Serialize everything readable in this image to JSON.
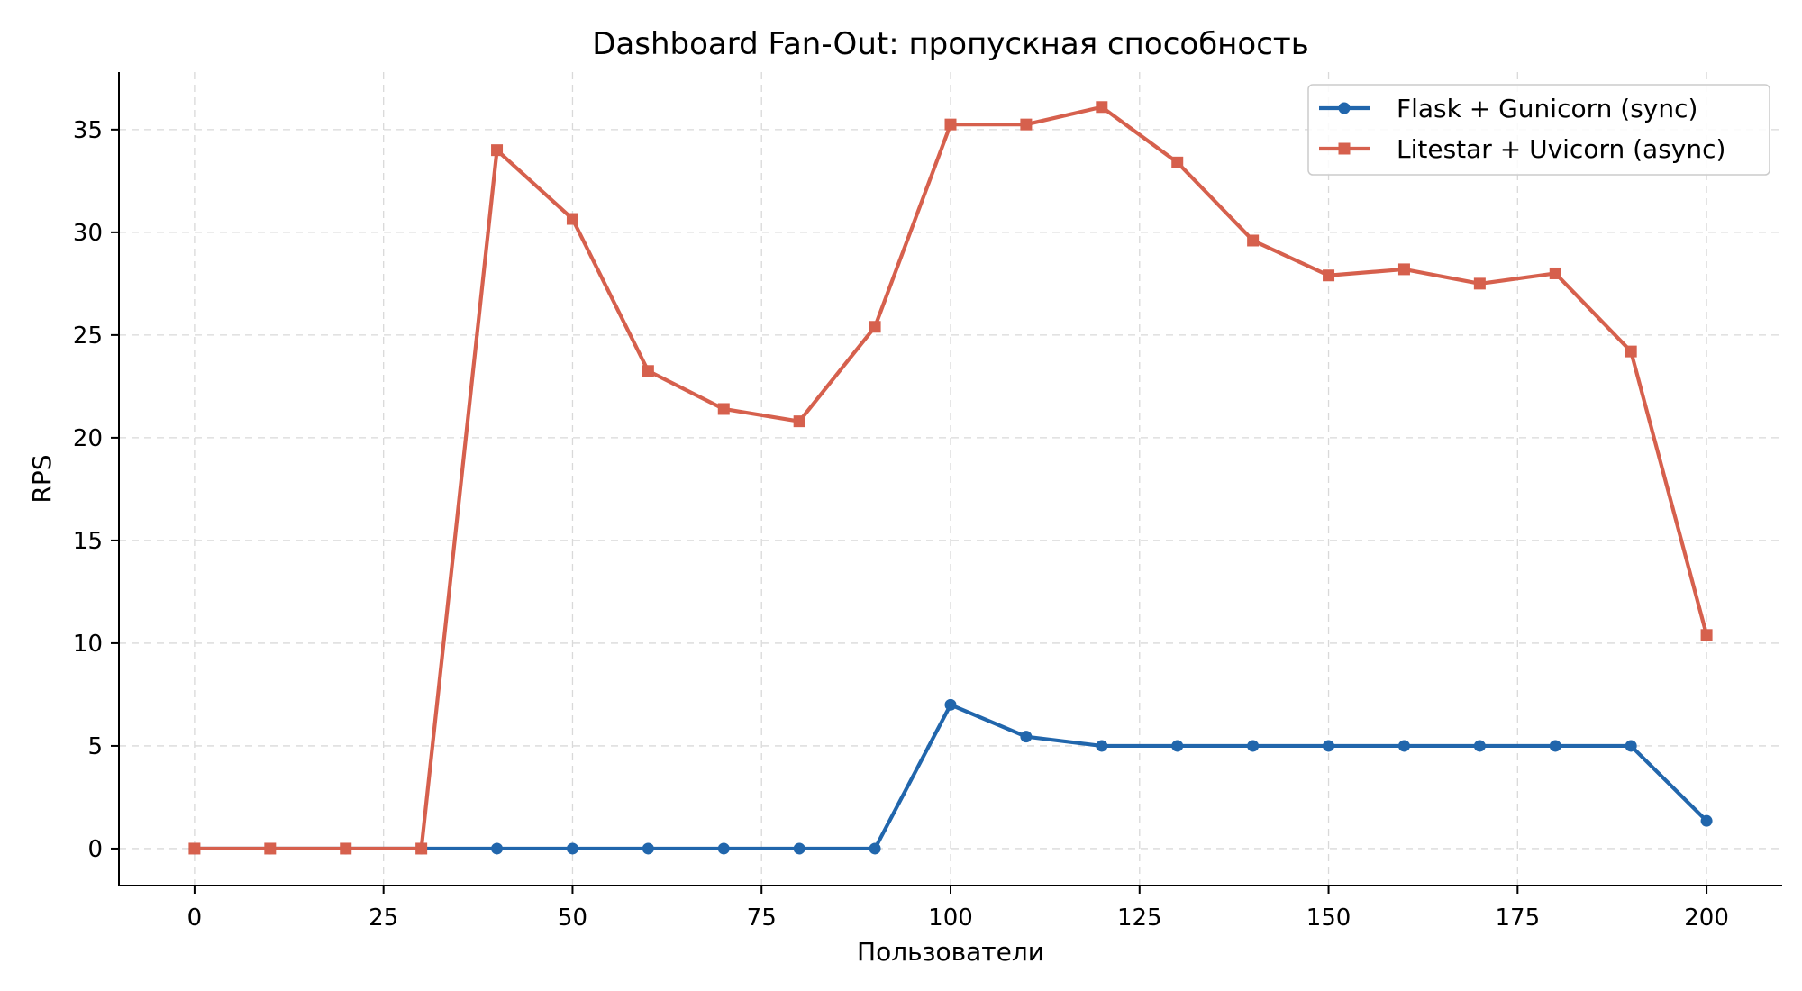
{
  "chart_data": {
    "type": "line",
    "title": "Dashboard Fan-Out: пропускная способность",
    "xlabel": "Пользователи",
    "ylabel": "RPS",
    "xlim": [
      -10,
      210
    ],
    "ylim": [
      -1.8,
      37.8
    ],
    "xticks": [
      0,
      25,
      50,
      75,
      100,
      125,
      150,
      175,
      200
    ],
    "yticks": [
      0,
      5,
      10,
      15,
      20,
      25,
      30,
      35
    ],
    "grid": true,
    "legend_position": "top-right",
    "x": [
      0,
      10,
      20,
      30,
      40,
      50,
      60,
      70,
      80,
      90,
      100,
      110,
      120,
      130,
      140,
      150,
      160,
      170,
      180,
      190,
      200
    ],
    "series": [
      {
        "name": "Flask + Gunicorn (sync)",
        "color": "#2166ac",
        "marker": "circle",
        "values": [
          0,
          0,
          0,
          0,
          0,
          0,
          0,
          0,
          0,
          0,
          7.0,
          5.45,
          5.0,
          5.0,
          5.0,
          5.0,
          5.0,
          5.0,
          5.0,
          5.0,
          1.35
        ]
      },
      {
        "name": "Litestar + Uvicorn (async)",
        "color": "#d6604d",
        "marker": "square",
        "values": [
          0,
          0,
          0,
          0,
          34.0,
          30.65,
          23.25,
          21.4,
          20.8,
          25.4,
          35.25,
          35.25,
          36.1,
          33.4,
          29.6,
          27.9,
          28.2,
          27.5,
          28.0,
          24.2,
          10.4
        ]
      }
    ]
  }
}
